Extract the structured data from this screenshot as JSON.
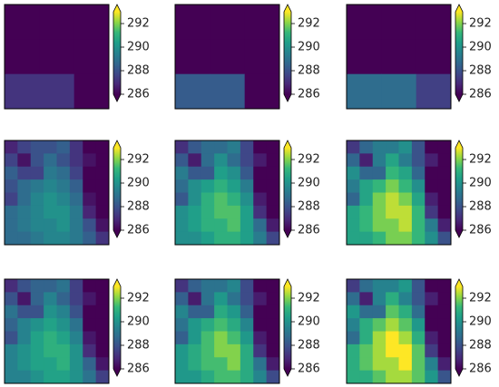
{
  "chart_data": [
    {
      "type": "heatmap",
      "colormap": "viridis",
      "extend": "both",
      "clim": [
        286,
        293
      ],
      "cbar_ticks": [
        286,
        288,
        290,
        292
      ],
      "values": [
        [
          286,
          286,
          286
        ],
        [
          286,
          286,
          286
        ],
        [
          287.2,
          287.2,
          286
        ]
      ]
    },
    {
      "type": "heatmap",
      "colormap": "viridis",
      "extend": "both",
      "clim": [
        286,
        293
      ],
      "cbar_ticks": [
        286,
        288,
        290,
        292
      ],
      "values": [
        [
          286,
          286,
          286
        ],
        [
          286,
          286,
          286
        ],
        [
          288.3,
          288.3,
          286
        ]
      ]
    },
    {
      "type": "heatmap",
      "colormap": "viridis",
      "extend": "both",
      "clim": [
        286,
        293
      ],
      "cbar_ticks": [
        286,
        288,
        290,
        292
      ],
      "values": [
        [
          286,
          286,
          286
        ],
        [
          286,
          286,
          286
        ],
        [
          288.8,
          288.8,
          287.5
        ]
      ]
    },
    {
      "type": "heatmap",
      "colormap": "viridis",
      "extend": "both",
      "clim": [
        286,
        293
      ],
      "cbar_ticks": [
        286,
        288,
        290,
        292
      ],
      "values": [
        [
          286.8,
          287.6,
          288,
          288,
          288.4,
          287.2,
          286,
          286
        ],
        [
          287.6,
          286.4,
          288,
          288.8,
          288,
          287.2,
          286.4,
          286
        ],
        [
          288.4,
          287.6,
          287.6,
          289.2,
          288.8,
          287.6,
          286,
          286
        ],
        [
          288,
          288.8,
          289.2,
          289.6,
          289.2,
          288.4,
          286,
          286
        ],
        [
          287.6,
          288.8,
          289.6,
          290,
          289.6,
          288.8,
          286.4,
          286
        ],
        [
          288.8,
          289.2,
          289.6,
          290,
          290,
          289.2,
          286.8,
          286
        ],
        [
          288.8,
          289.2,
          289.6,
          289.6,
          290,
          289.2,
          288,
          286.4
        ],
        [
          288.8,
          288.8,
          289.2,
          289.6,
          289.6,
          289.2,
          288.4,
          287.2
        ]
      ]
    },
    {
      "type": "heatmap",
      "colormap": "viridis",
      "extend": "both",
      "clim": [
        286,
        293
      ],
      "cbar_ticks": [
        286,
        288,
        290,
        292
      ],
      "values": [
        [
          287.1,
          288.2,
          288.8,
          288.8,
          289.3,
          287.7,
          286,
          286
        ],
        [
          288.2,
          286.6,
          288.8,
          289.9,
          288.8,
          287.7,
          286.6,
          286
        ],
        [
          289.3,
          288.2,
          288.2,
          290.4,
          289.9,
          288.2,
          286,
          286
        ],
        [
          288.8,
          289.9,
          290.4,
          291,
          290.4,
          289.3,
          286,
          286
        ],
        [
          288.2,
          289.9,
          291,
          291.5,
          291,
          289.9,
          286.6,
          286
        ],
        [
          289.9,
          290.4,
          291,
          291.5,
          291.5,
          290.4,
          287.1,
          286
        ],
        [
          289.9,
          290.4,
          291,
          291,
          291.5,
          290.4,
          288.8,
          286.6
        ],
        [
          289.9,
          289.9,
          290.4,
          291,
          291,
          290.4,
          289.3,
          287.7
        ]
      ]
    },
    {
      "type": "heatmap",
      "colormap": "viridis",
      "extend": "both",
      "clim": [
        286,
        293
      ],
      "cbar_ticks": [
        286,
        288,
        290,
        292
      ],
      "values": [
        [
          287.3,
          288.6,
          289.3,
          289.3,
          289.9,
          288,
          286,
          286
        ],
        [
          288.6,
          286.7,
          289.3,
          290.6,
          289.3,
          288,
          286.7,
          286
        ],
        [
          289.9,
          288.6,
          288.6,
          291.2,
          290.6,
          288.6,
          286,
          286
        ],
        [
          289.3,
          290.6,
          291.2,
          291.9,
          291.2,
          289.9,
          286,
          286
        ],
        [
          288.6,
          290.6,
          291.9,
          292.5,
          291.9,
          290.6,
          286.7,
          286
        ],
        [
          290.6,
          291.2,
          291.9,
          292.5,
          292.5,
          291.2,
          287.3,
          286
        ],
        [
          290.6,
          291.2,
          291.9,
          291.9,
          292.5,
          291.2,
          289.3,
          286.7
        ],
        [
          290.6,
          290.6,
          291.2,
          291.9,
          291.9,
          291.2,
          289.9,
          288
        ]
      ]
    },
    {
      "type": "heatmap",
      "colormap": "viridis",
      "extend": "both",
      "clim": [
        286,
        293
      ],
      "cbar_ticks": [
        286,
        288,
        290,
        292
      ],
      "values": [
        [
          287,
          288,
          288.5,
          288.5,
          289,
          287.5,
          286,
          286
        ],
        [
          288,
          286.5,
          288.5,
          289.5,
          288.5,
          287.5,
          286.5,
          286
        ],
        [
          289,
          288,
          288,
          290,
          289.5,
          288,
          286,
          286
        ],
        [
          288.5,
          289.5,
          290,
          290.5,
          290,
          289,
          286,
          286
        ],
        [
          288,
          289.5,
          290.5,
          291,
          290.5,
          289.5,
          286.5,
          286
        ],
        [
          289.5,
          290,
          290.5,
          291,
          291,
          290,
          287,
          286
        ],
        [
          289.5,
          290,
          290.5,
          290.5,
          291,
          290,
          288.5,
          286.5
        ],
        [
          289.5,
          289.5,
          290,
          290.5,
          290.5,
          290,
          289,
          287.5
        ]
      ]
    },
    {
      "type": "heatmap",
      "colormap": "viridis",
      "extend": "both",
      "clim": [
        286,
        293
      ],
      "cbar_ticks": [
        286,
        288,
        290,
        292
      ],
      "values": [
        [
          287.2,
          288.4,
          289,
          289,
          289.6,
          287.8,
          286,
          286
        ],
        [
          288.4,
          286.6,
          289,
          290.2,
          289,
          287.8,
          286.6,
          286
        ],
        [
          289.6,
          288.4,
          288.4,
          290.8,
          290.2,
          288.4,
          286,
          286
        ],
        [
          289,
          290.2,
          290.8,
          291.4,
          290.8,
          289.6,
          286,
          286
        ],
        [
          288.4,
          290.2,
          291.4,
          292,
          291.4,
          290.2,
          286.6,
          286
        ],
        [
          290.2,
          290.8,
          291.4,
          292,
          292,
          290.8,
          287.2,
          286
        ],
        [
          290.2,
          290.8,
          291.4,
          291.4,
          292,
          290.8,
          289,
          286.6
        ],
        [
          290.2,
          290.2,
          290.8,
          291.4,
          291.4,
          290.8,
          289.6,
          287.8
        ]
      ]
    },
    {
      "type": "heatmap",
      "colormap": "viridis",
      "extend": "both",
      "clim": [
        286,
        293
      ],
      "cbar_ticks": [
        286,
        288,
        290,
        292
      ],
      "values": [
        [
          287.4,
          288.8,
          289.5,
          289.5,
          290.2,
          288.1,
          286,
          286
        ],
        [
          288.8,
          286.7,
          289.5,
          290.9,
          289.5,
          288.1,
          286.7,
          286
        ],
        [
          290.2,
          288.8,
          288.8,
          291.6,
          290.9,
          288.8,
          286,
          286
        ],
        [
          289.5,
          290.9,
          291.6,
          292.3,
          291.6,
          290.2,
          286,
          286
        ],
        [
          288.8,
          290.9,
          292.3,
          293,
          292.3,
          290.9,
          286.7,
          286
        ],
        [
          290.9,
          291.6,
          292.3,
          293,
          293,
          291.6,
          287.4,
          286
        ],
        [
          290.9,
          291.6,
          292.3,
          292.3,
          293,
          291.6,
          289.5,
          286.7
        ],
        [
          290.9,
          290.9,
          291.6,
          292.3,
          292.3,
          291.6,
          290.2,
          288.1
        ]
      ]
    }
  ]
}
